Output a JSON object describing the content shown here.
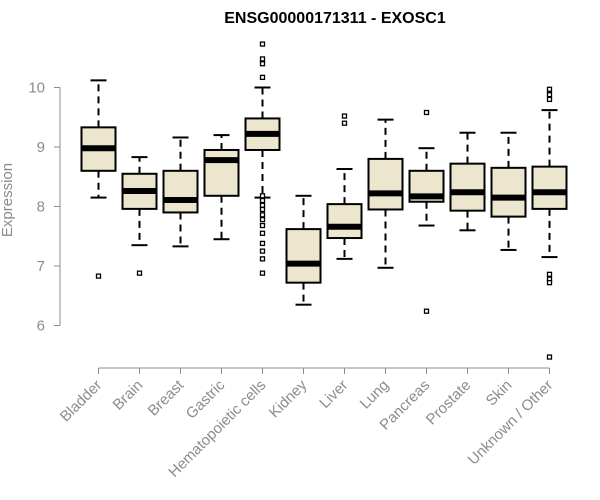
{
  "chart_data": {
    "type": "boxplot",
    "title": "ENSG00000171311 - EXOSC1",
    "xlabel": "",
    "ylabel": "Expression",
    "ylim": [
      5.3,
      10.8
    ],
    "yticks": [
      6,
      7,
      8,
      9,
      10
    ],
    "grid": false,
    "legend": "none",
    "colors": {
      "box_fill": "#ede6cf",
      "box_stroke": "#000000",
      "axis": "#8c8c8c"
    },
    "categories": [
      "Bladder",
      "Brain",
      "Breast",
      "Gastric",
      "Hematopoietic cells",
      "Kidney",
      "Liver",
      "Lung",
      "Pancreas",
      "Prostate",
      "Skin",
      "Unknown / Other"
    ],
    "boxes": [
      {
        "category": "Bladder",
        "whisker_low": 8.15,
        "q1": 8.6,
        "median": 8.98,
        "q3": 9.33,
        "whisker_high": 10.12,
        "outliers": [
          6.83
        ]
      },
      {
        "category": "Brain",
        "whisker_low": 7.35,
        "q1": 7.96,
        "median": 8.26,
        "q3": 8.55,
        "whisker_high": 8.83,
        "outliers": [
          6.88
        ]
      },
      {
        "category": "Breast",
        "whisker_low": 7.33,
        "q1": 7.9,
        "median": 8.11,
        "q3": 8.6,
        "whisker_high": 9.16,
        "outliers": []
      },
      {
        "category": "Gastric",
        "whisker_low": 7.45,
        "q1": 8.18,
        "median": 8.78,
        "q3": 8.95,
        "whisker_high": 9.2,
        "outliers": []
      },
      {
        "category": "Hematopoietic cells",
        "whisker_low": 8.15,
        "q1": 8.95,
        "median": 9.22,
        "q3": 9.48,
        "whisker_high": 10.0,
        "outliers": [
          10.73,
          10.48,
          10.4,
          10.17,
          8.18,
          8.1,
          8.02,
          7.95,
          7.86,
          7.78,
          7.68,
          7.55,
          7.38,
          7.25,
          7.12,
          6.88
        ]
      },
      {
        "category": "Kidney",
        "whisker_low": 6.35,
        "q1": 6.72,
        "median": 7.04,
        "q3": 7.62,
        "whisker_high": 8.18,
        "outliers": []
      },
      {
        "category": "Liver",
        "whisker_low": 7.12,
        "q1": 7.47,
        "median": 7.66,
        "q3": 8.04,
        "whisker_high": 8.63,
        "outliers": [
          9.52,
          9.4
        ]
      },
      {
        "category": "Lung",
        "whisker_low": 6.97,
        "q1": 7.95,
        "median": 8.22,
        "q3": 8.8,
        "whisker_high": 9.46,
        "outliers": []
      },
      {
        "category": "Pancreas",
        "whisker_low": 7.68,
        "q1": 8.08,
        "median": 8.17,
        "q3": 8.6,
        "whisker_high": 8.98,
        "outliers": [
          9.58,
          6.24
        ]
      },
      {
        "category": "Prostate",
        "whisker_low": 7.6,
        "q1": 7.93,
        "median": 8.24,
        "q3": 8.72,
        "whisker_high": 9.24,
        "outliers": []
      },
      {
        "category": "Skin",
        "whisker_low": 7.27,
        "q1": 7.83,
        "median": 8.15,
        "q3": 8.65,
        "whisker_high": 9.24,
        "outliers": []
      },
      {
        "category": "Unknown / Other",
        "whisker_low": 7.15,
        "q1": 7.96,
        "median": 8.24,
        "q3": 8.67,
        "whisker_high": 9.62,
        "outliers": [
          9.97,
          9.88,
          9.8,
          6.86,
          6.78,
          6.72,
          5.47
        ]
      }
    ]
  }
}
